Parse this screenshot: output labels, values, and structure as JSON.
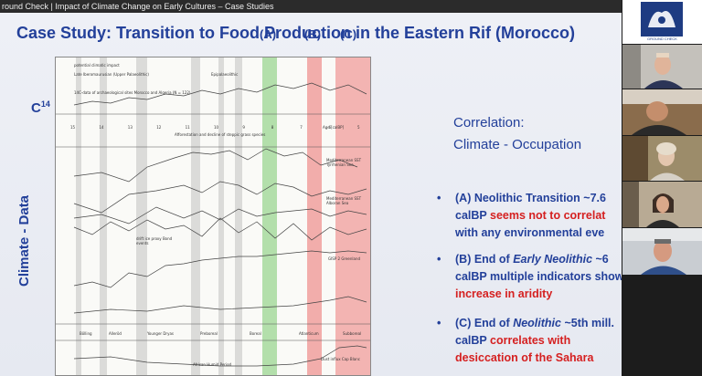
{
  "window": {
    "title": "round Check | Impact of Climate Change on Early Cultures – Case Studies"
  },
  "slide": {
    "title": "Case Study: Transition to Food Production in the Eastern Rif (Morocco)",
    "c14_label": "C",
    "c14_sup": "14",
    "side_label": "Climate - Data",
    "band_labels": [
      "(A)",
      "(B)",
      "(C)"
    ],
    "correlation_title_1": "Correlation:",
    "correlation_title_2": "Climate - Occupation",
    "bullets": [
      {
        "line1": "(A) Neolithic Transition ~7.6",
        "line2_a": "calBP ",
        "line2_b": "seems not to correlat",
        "line3": "with any environmental eve"
      },
      {
        "line1_a": "(B) End of ",
        "line1_b": "Early Neolithic",
        "line1_c": " ~6",
        "line2": "calBP multiple indicators show",
        "line3": "increase in aridity"
      },
      {
        "line1_a": "(C) End of ",
        "line1_b": "Neolithic",
        "line1_c": " ~5th mill.",
        "line2_a": "calBP ",
        "line2_b": "correlates with",
        "line3": "desiccation of the Sahara"
      }
    ]
  },
  "figure": {
    "legend_impact": "potential climatic impact",
    "top_period_1": "Late Iberomaurusian (Upper Palaeolithic)",
    "top_period_2": "Epipalaeolithic",
    "c14_note": "14C-data of archaeological sites Morocco and Algeria (N = 122)",
    "afforestation": "Afforestation and decline of steppic grass species",
    "age_axis": [
      "15",
      "14",
      "13",
      "12",
      "11",
      "10",
      "9",
      "8",
      "7",
      "6",
      "5"
    ],
    "age_unit": "Age [calBP]",
    "sst1": "Mediterranean SST Tyrrhenian Sea",
    "sst2": "Mediterranean SST Alboran Sea",
    "drift": "drift ice proxy Bond events",
    "gisp": "GISP 2 Greenland",
    "periods": [
      "Bölling",
      "Alleröd",
      "Younger Dryas",
      "Preboreal",
      "Boreal",
      "Atlanticum",
      "Subboreal"
    ],
    "humid": "African Humid Period",
    "dust": "Dust influx Cap Blanc"
  },
  "participants": [
    {
      "name": "logo",
      "caption": "GROUND CHECK"
    },
    {
      "name": "participant-1"
    },
    {
      "name": "participant-2"
    },
    {
      "name": "participant-3"
    },
    {
      "name": "participant-4"
    },
    {
      "name": "participant-5"
    }
  ]
}
